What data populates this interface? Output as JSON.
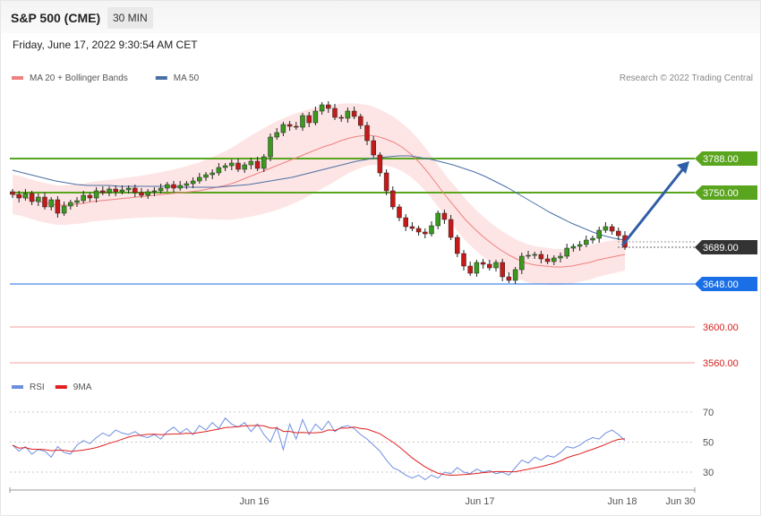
{
  "header": {
    "title": "S&P 500 (CME)",
    "timeframe": "30 MIN"
  },
  "datetime": "Friday, June 17, 2022 9:30:54 AM CET",
  "credit": "Research © 2022 Trading Central",
  "colors": {
    "ma20": "#f08080",
    "ma50": "#4a6fa5",
    "band_fill": "#fde0e0",
    "up_candle": "#3a9a1e",
    "down_candle": "#c41a1a",
    "resistance": "#5aa51e",
    "current": "#333333",
    "pivot": "#1a6fe6",
    "support": "#f3a0a0",
    "support_text": "#d62020",
    "rsi": "#6e8fe0",
    "rsi_ma": "#e02020",
    "arrow": "#2f5ea8"
  },
  "chart_data": [
    {
      "type": "line",
      "title": "S&P 500 (CME) 30 MIN",
      "legend": [
        {
          "label": "MA 20 + Bollinger Bands",
          "color": "#f08080"
        },
        {
          "label": "MA 50",
          "color": "#4a6fa5"
        }
      ],
      "x_ticks": [
        "Jun 16",
        "Jun 17",
        "Jun 18",
        "Jun 30"
      ],
      "levels": [
        {
          "value": 3788.0,
          "label": "3788.00",
          "role": "resistance"
        },
        {
          "value": 3750.0,
          "label": "3750.00",
          "role": "resistance"
        },
        {
          "value": 3689.0,
          "label": "3689.00",
          "role": "current"
        },
        {
          "value": 3648.0,
          "label": "3648.00",
          "role": "pivot"
        },
        {
          "value": 3600.0,
          "label": "3600.00",
          "role": "support"
        },
        {
          "value": 3560.0,
          "label": "3560.00",
          "role": "support"
        }
      ],
      "ylim": [
        3540,
        3830
      ],
      "close": [
        3748,
        3744,
        3749,
        3740,
        3745,
        3734,
        3742,
        3727,
        3735,
        3739,
        3741,
        3747,
        3744,
        3752,
        3750,
        3754,
        3751,
        3753,
        3755,
        3750,
        3747,
        3751,
        3752,
        3755,
        3759,
        3755,
        3758,
        3760,
        3763,
        3767,
        3770,
        3772,
        3778,
        3780,
        3783,
        3776,
        3781,
        3785,
        3777,
        3790,
        3812,
        3817,
        3826,
        3824,
        3823,
        3836,
        3828,
        3841,
        3848,
        3844,
        3834,
        3833,
        3841,
        3835,
        3825,
        3808,
        3792,
        3772,
        3752,
        3734,
        3722,
        3712,
        3710,
        3706,
        3704,
        3713,
        3727,
        3720,
        3700,
        3682,
        3668,
        3660,
        3672,
        3670,
        3666,
        3672,
        3656,
        3652,
        3664,
        3679,
        3680,
        3681,
        3676,
        3673,
        3677,
        3679,
        3688,
        3690,
        3692,
        3697,
        3699,
        3708,
        3712,
        3707,
        3702,
        3689
      ],
      "ma20": [
        3748,
        3746,
        3743,
        3740,
        3738,
        3736,
        3736,
        3737,
        3738,
        3740,
        3741,
        3742,
        3743,
        3744,
        3745,
        3746,
        3747,
        3748,
        3749,
        3750,
        3751,
        3752,
        3754,
        3756,
        3758,
        3761,
        3765,
        3769,
        3773,
        3777,
        3781,
        3785,
        3789,
        3793,
        3797,
        3801,
        3804,
        3808,
        3811,
        3813,
        3814,
        3813,
        3810,
        3806,
        3800,
        3792,
        3782,
        3770,
        3757,
        3744,
        3732,
        3720,
        3710,
        3701,
        3693,
        3686,
        3680,
        3675,
        3671,
        3669,
        3668,
        3667,
        3667,
        3668,
        3670,
        3672,
        3675,
        3677,
        3679,
        3681
      ],
      "ma50": [
        3775,
        3772,
        3769,
        3766,
        3763,
        3761,
        3759,
        3758,
        3758,
        3758,
        3757,
        3757,
        3757,
        3757,
        3757,
        3757,
        3756,
        3756,
        3756,
        3756,
        3757,
        3758,
        3759,
        3761,
        3763,
        3765,
        3767,
        3770,
        3773,
        3776,
        3779,
        3782,
        3785,
        3787,
        3789,
        3790,
        3791,
        3791,
        3789,
        3787,
        3784,
        3781,
        3777,
        3773,
        3768,
        3762,
        3756,
        3749,
        3742,
        3735,
        3728,
        3722,
        3716,
        3711,
        3706,
        3702,
        3699,
        3697
      ],
      "ma50_x": [
        0,
        2,
        4,
        6,
        8,
        10,
        12,
        14,
        16,
        18,
        20,
        22,
        24,
        26,
        28,
        30,
        32,
        34,
        36,
        38,
        40,
        42,
        44,
        46,
        48,
        50,
        52,
        54,
        56,
        58,
        60,
        62,
        64,
        66,
        68,
        70,
        72,
        74,
        76,
        78,
        80,
        82,
        84,
        86,
        88,
        90,
        92,
        94,
        95,
        95,
        95,
        95,
        95,
        95,
        95,
        95,
        95,
        95
      ],
      "bands": {
        "upper_max": 3863,
        "lower_min": 3636
      }
    },
    {
      "type": "line",
      "legend": [
        {
          "label": "RSI",
          "color": "#6e8fe0"
        },
        {
          "label": "9MA",
          "color": "#e02020"
        }
      ],
      "y_ticks": [
        70,
        50,
        30
      ],
      "ylim": [
        10,
        80
      ],
      "rsi": [
        48,
        44,
        47,
        42,
        45,
        44,
        40,
        47,
        43,
        42,
        48,
        51,
        49,
        53,
        56,
        54,
        58,
        56,
        55,
        57,
        54,
        53,
        55,
        52,
        57,
        60,
        56,
        59,
        55,
        61,
        58,
        63,
        59,
        66,
        62,
        60,
        63,
        57,
        62,
        55,
        50,
        60,
        45,
        62,
        52,
        65,
        55,
        62,
        58,
        64,
        57,
        60,
        61,
        59,
        55,
        52,
        48,
        44,
        38,
        33,
        31,
        28,
        26,
        28,
        25,
        28,
        26,
        30,
        29,
        33,
        30,
        29,
        32,
        30,
        31,
        29,
        30,
        28,
        33,
        38,
        36,
        40,
        38,
        41,
        40,
        43,
        47,
        46,
        48,
        51,
        53,
        52,
        56,
        58,
        55,
        51
      ]
    }
  ]
}
